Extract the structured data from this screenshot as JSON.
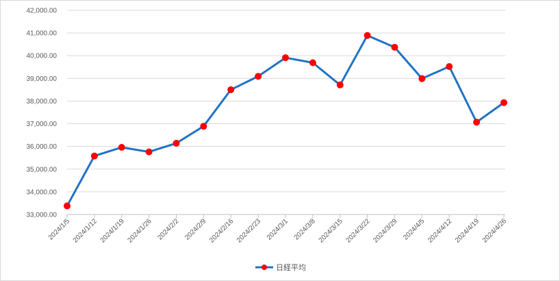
{
  "chart_data": {
    "type": "line",
    "title": "",
    "xlabel": "",
    "ylabel": "",
    "ylim": [
      33000,
      42000
    ],
    "y_tick_step": 1000,
    "y_tick_labels": [
      "33,000.00",
      "34,000.00",
      "35,000.00",
      "36,000.00",
      "37,000.00",
      "38,000.00",
      "39,000.00",
      "40,000.00",
      "41,000.00",
      "42,000.00"
    ],
    "grid": true,
    "legend_position": "bottom-center",
    "categories": [
      "2024/1/5",
      "2024/1/12",
      "2024/1/19",
      "2024/1/26",
      "2024/2/2",
      "2024/2/9",
      "2024/2/16",
      "2024/2/23",
      "2024/3/1",
      "2024/3/8",
      "2024/3/15",
      "2024/3/22",
      "2024/3/29",
      "2024/4/5",
      "2024/4/12",
      "2024/4/19",
      "2024/4/26"
    ],
    "series": [
      {
        "name": "日経平均",
        "line_color": "#1f72c4",
        "marker_color": "#ff0000",
        "values": [
          33380,
          35580,
          35960,
          35760,
          36140,
          36890,
          38500,
          39090,
          39910,
          39690,
          38710,
          40890,
          40370,
          38990,
          39520,
          37070,
          37930
        ]
      }
    ]
  }
}
